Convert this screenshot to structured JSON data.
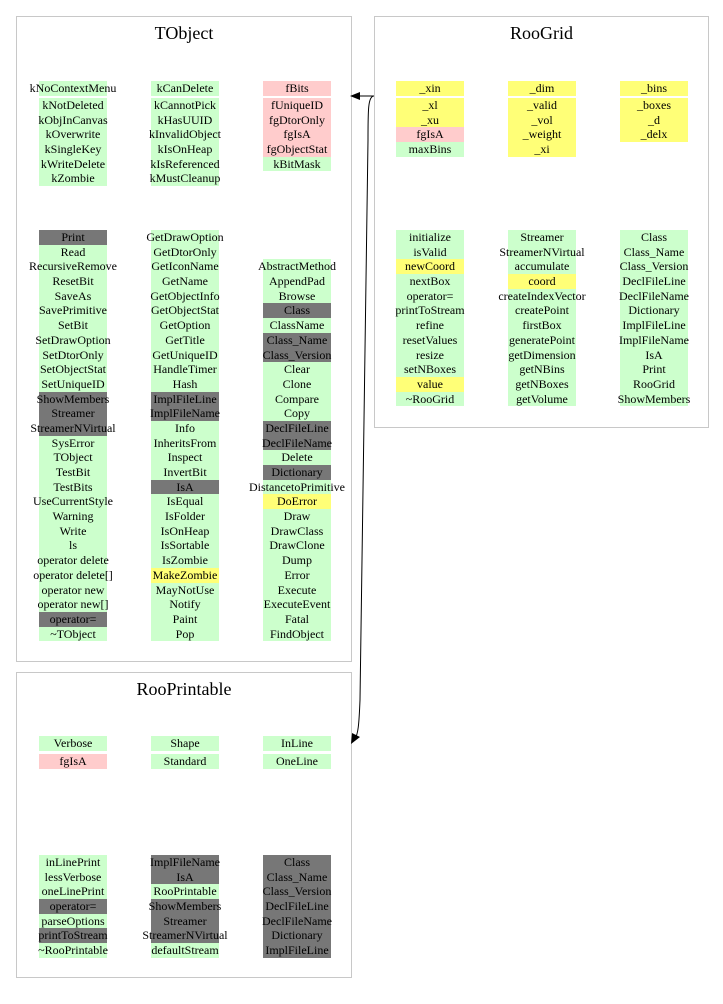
{
  "colors": {
    "public": "#ccffcc",
    "private": "#ffcccc",
    "protected": "#ffff77",
    "inherited": "#777777"
  },
  "classes": [
    {
      "name": "TObject",
      "data_first": [
        {
          "t": "kNoContextMenu",
          "c": "g"
        },
        {
          "t": "kCanDelete",
          "c": "g"
        },
        {
          "t": "fBits",
          "c": "r"
        }
      ],
      "data_cols": [
        [
          {
            "t": "kNotDeleted",
            "c": "g"
          },
          {
            "t": "kObjInCanvas",
            "c": "g"
          },
          {
            "t": "kOverwrite",
            "c": "g"
          },
          {
            "t": "kSingleKey",
            "c": "g"
          },
          {
            "t": "kWriteDelete",
            "c": "g"
          },
          {
            "t": "kZombie",
            "c": "g"
          }
        ],
        [
          {
            "t": "kCannotPick",
            "c": "g"
          },
          {
            "t": "kHasUUID",
            "c": "g"
          },
          {
            "t": "kInvalidObject",
            "c": "g"
          },
          {
            "t": "kIsOnHeap",
            "c": "g"
          },
          {
            "t": "kIsReferenced",
            "c": "g"
          },
          {
            "t": "kMustCleanup",
            "c": "g"
          }
        ],
        [
          {
            "t": "fUniqueID",
            "c": "r"
          },
          {
            "t": "fgDtorOnly",
            "c": "r"
          },
          {
            "t": "fgIsA",
            "c": "r"
          },
          {
            "t": "fgObjectStat",
            "c": "r"
          },
          {
            "t": "kBitMask",
            "c": "g"
          }
        ]
      ],
      "method_cols": [
        [
          {
            "t": "Print",
            "c": "d"
          },
          {
            "t": "Read",
            "c": "g"
          },
          {
            "t": "RecursiveRemove",
            "c": "g"
          },
          {
            "t": "ResetBit",
            "c": "g"
          },
          {
            "t": "SaveAs",
            "c": "g"
          },
          {
            "t": "SavePrimitive",
            "c": "g"
          },
          {
            "t": "SetBit",
            "c": "g"
          },
          {
            "t": "SetDrawOption",
            "c": "g"
          },
          {
            "t": "SetDtorOnly",
            "c": "g"
          },
          {
            "t": "SetObjectStat",
            "c": "g"
          },
          {
            "t": "SetUniqueID",
            "c": "g"
          },
          {
            "t": "ShowMembers",
            "c": "d"
          },
          {
            "t": "Streamer",
            "c": "d"
          },
          {
            "t": "StreamerNVirtual",
            "c": "d"
          },
          {
            "t": "SysError",
            "c": "g"
          },
          {
            "t": "TObject",
            "c": "g"
          },
          {
            "t": "TestBit",
            "c": "g"
          },
          {
            "t": "TestBits",
            "c": "g"
          },
          {
            "t": "UseCurrentStyle",
            "c": "g"
          },
          {
            "t": "Warning",
            "c": "g"
          },
          {
            "t": "Write",
            "c": "g"
          },
          {
            "t": "ls",
            "c": "g"
          },
          {
            "t": "operator delete",
            "c": "g"
          },
          {
            "t": "operator delete[]",
            "c": "g"
          },
          {
            "t": "operator new",
            "c": "g"
          },
          {
            "t": "operator new[]",
            "c": "g"
          },
          {
            "t": "operator=",
            "c": "d"
          },
          {
            "t": "~TObject",
            "c": "g"
          }
        ],
        [
          {
            "t": "GetDrawOption",
            "c": "g"
          },
          {
            "t": "GetDtorOnly",
            "c": "g"
          },
          {
            "t": "GetIconName",
            "c": "g"
          },
          {
            "t": "GetName",
            "c": "g"
          },
          {
            "t": "GetObjectInfo",
            "c": "g"
          },
          {
            "t": "GetObjectStat",
            "c": "g"
          },
          {
            "t": "GetOption",
            "c": "g"
          },
          {
            "t": "GetTitle",
            "c": "g"
          },
          {
            "t": "GetUniqueID",
            "c": "g"
          },
          {
            "t": "HandleTimer",
            "c": "g"
          },
          {
            "t": "Hash",
            "c": "g"
          },
          {
            "t": "ImplFileLine",
            "c": "d"
          },
          {
            "t": "ImplFileName",
            "c": "d"
          },
          {
            "t": "Info",
            "c": "g"
          },
          {
            "t": "InheritsFrom",
            "c": "g"
          },
          {
            "t": "Inspect",
            "c": "g"
          },
          {
            "t": "InvertBit",
            "c": "g"
          },
          {
            "t": "IsA",
            "c": "d"
          },
          {
            "t": "IsEqual",
            "c": "g"
          },
          {
            "t": "IsFolder",
            "c": "g"
          },
          {
            "t": "IsOnHeap",
            "c": "g"
          },
          {
            "t": "IsSortable",
            "c": "g"
          },
          {
            "t": "IsZombie",
            "c": "g"
          },
          {
            "t": "MakeZombie",
            "c": "y"
          },
          {
            "t": "MayNotUse",
            "c": "g"
          },
          {
            "t": "Notify",
            "c": "g"
          },
          {
            "t": "Paint",
            "c": "g"
          },
          {
            "t": "Pop",
            "c": "g"
          }
        ],
        [
          {
            "t": "AbstractMethod",
            "c": "g"
          },
          {
            "t": "AppendPad",
            "c": "g"
          },
          {
            "t": "Browse",
            "c": "g"
          },
          {
            "t": "Class",
            "c": "d"
          },
          {
            "t": "ClassName",
            "c": "g"
          },
          {
            "t": "Class_Name",
            "c": "d"
          },
          {
            "t": "Class_Version",
            "c": "d"
          },
          {
            "t": "Clear",
            "c": "g"
          },
          {
            "t": "Clone",
            "c": "g"
          },
          {
            "t": "Compare",
            "c": "g"
          },
          {
            "t": "Copy",
            "c": "g"
          },
          {
            "t": "DeclFileLine",
            "c": "d"
          },
          {
            "t": "DeclFileName",
            "c": "d"
          },
          {
            "t": "Delete",
            "c": "g"
          },
          {
            "t": "Dictionary",
            "c": "d"
          },
          {
            "t": "DistancetoPrimitive",
            "c": "g"
          },
          {
            "t": "DoError",
            "c": "y"
          },
          {
            "t": "Draw",
            "c": "g"
          },
          {
            "t": "DrawClass",
            "c": "g"
          },
          {
            "t": "DrawClone",
            "c": "g"
          },
          {
            "t": "Dump",
            "c": "g"
          },
          {
            "t": "Error",
            "c": "g"
          },
          {
            "t": "Execute",
            "c": "g"
          },
          {
            "t": "ExecuteEvent",
            "c": "g"
          },
          {
            "t": "Fatal",
            "c": "g"
          },
          {
            "t": "FindObject",
            "c": "g"
          }
        ]
      ]
    },
    {
      "name": "RooGrid",
      "data_first": [
        {
          "t": "_xin",
          "c": "y"
        },
        {
          "t": "_dim",
          "c": "y"
        },
        {
          "t": "_bins",
          "c": "y"
        }
      ],
      "data_cols": [
        [
          {
            "t": "_xl",
            "c": "y"
          },
          {
            "t": "_xu",
            "c": "y"
          },
          {
            "t": "fgIsA",
            "c": "r"
          },
          {
            "t": "maxBins",
            "c": "g"
          }
        ],
        [
          {
            "t": "_valid",
            "c": "y"
          },
          {
            "t": "_vol",
            "c": "y"
          },
          {
            "t": "_weight",
            "c": "y"
          },
          {
            "t": "_xi",
            "c": "y"
          }
        ],
        [
          {
            "t": "_boxes",
            "c": "y"
          },
          {
            "t": "_d",
            "c": "y"
          },
          {
            "t": "_delx",
            "c": "y"
          }
        ]
      ],
      "method_cols": [
        [
          {
            "t": "initialize",
            "c": "g"
          },
          {
            "t": "isValid",
            "c": "g"
          },
          {
            "t": "newCoord",
            "c": "y"
          },
          {
            "t": "nextBox",
            "c": "g"
          },
          {
            "t": "operator=",
            "c": "g"
          },
          {
            "t": "printToStream",
            "c": "g"
          },
          {
            "t": "refine",
            "c": "g"
          },
          {
            "t": "resetValues",
            "c": "g"
          },
          {
            "t": "resize",
            "c": "g"
          },
          {
            "t": "setNBoxes",
            "c": "g"
          },
          {
            "t": "value",
            "c": "y"
          },
          {
            "t": "~RooGrid",
            "c": "g"
          }
        ],
        [
          {
            "t": "Streamer",
            "c": "g"
          },
          {
            "t": "StreamerNVirtual",
            "c": "g"
          },
          {
            "t": "accumulate",
            "c": "g"
          },
          {
            "t": "coord",
            "c": "y"
          },
          {
            "t": "createIndexVector",
            "c": "g"
          },
          {
            "t": "createPoint",
            "c": "g"
          },
          {
            "t": "firstBox",
            "c": "g"
          },
          {
            "t": "generatePoint",
            "c": "g"
          },
          {
            "t": "getDimension",
            "c": "g"
          },
          {
            "t": "getNBins",
            "c": "g"
          },
          {
            "t": "getNBoxes",
            "c": "g"
          },
          {
            "t": "getVolume",
            "c": "g"
          }
        ],
        [
          {
            "t": "Class",
            "c": "g"
          },
          {
            "t": "Class_Name",
            "c": "g"
          },
          {
            "t": "Class_Version",
            "c": "g"
          },
          {
            "t": "DeclFileLine",
            "c": "g"
          },
          {
            "t": "DeclFileName",
            "c": "g"
          },
          {
            "t": "Dictionary",
            "c": "g"
          },
          {
            "t": "ImplFileLine",
            "c": "g"
          },
          {
            "t": "ImplFileName",
            "c": "g"
          },
          {
            "t": "IsA",
            "c": "g"
          },
          {
            "t": "Print",
            "c": "g"
          },
          {
            "t": "RooGrid",
            "c": "g"
          },
          {
            "t": "ShowMembers",
            "c": "g"
          }
        ]
      ]
    },
    {
      "name": "RooPrintable",
      "data_first": [
        {
          "t": "Verbose",
          "c": "g"
        },
        {
          "t": "Shape",
          "c": "g"
        },
        {
          "t": "InLine",
          "c": "g"
        }
      ],
      "data_cols": [
        [
          {
            "t": "fgIsA",
            "c": "r"
          }
        ],
        [
          {
            "t": "Standard",
            "c": "g"
          }
        ],
        [
          {
            "t": "OneLine",
            "c": "g"
          }
        ]
      ],
      "method_cols": [
        [
          {
            "t": "inLinePrint",
            "c": "g"
          },
          {
            "t": "lessVerbose",
            "c": "g"
          },
          {
            "t": "oneLinePrint",
            "c": "g"
          },
          {
            "t": "operator=",
            "c": "d"
          },
          {
            "t": "parseOptions",
            "c": "g"
          },
          {
            "t": "printToStream",
            "c": "d"
          },
          {
            "t": "~RooPrintable",
            "c": "g"
          }
        ],
        [
          {
            "t": "ImplFileName",
            "c": "d"
          },
          {
            "t": "IsA",
            "c": "d"
          },
          {
            "t": "RooPrintable",
            "c": "g"
          },
          {
            "t": "ShowMembers",
            "c": "d"
          },
          {
            "t": "Streamer",
            "c": "d"
          },
          {
            "t": "StreamerNVirtual",
            "c": "d"
          },
          {
            "t": "defaultStream",
            "c": "g"
          }
        ],
        [
          {
            "t": "Class",
            "c": "d"
          },
          {
            "t": "Class_Name",
            "c": "d"
          },
          {
            "t": "Class_Version",
            "c": "d"
          },
          {
            "t": "DeclFileLine",
            "c": "d"
          },
          {
            "t": "DeclFileName",
            "c": "d"
          },
          {
            "t": "Dictionary",
            "c": "d"
          },
          {
            "t": "ImplFileLine",
            "c": "d"
          }
        ]
      ]
    }
  ]
}
